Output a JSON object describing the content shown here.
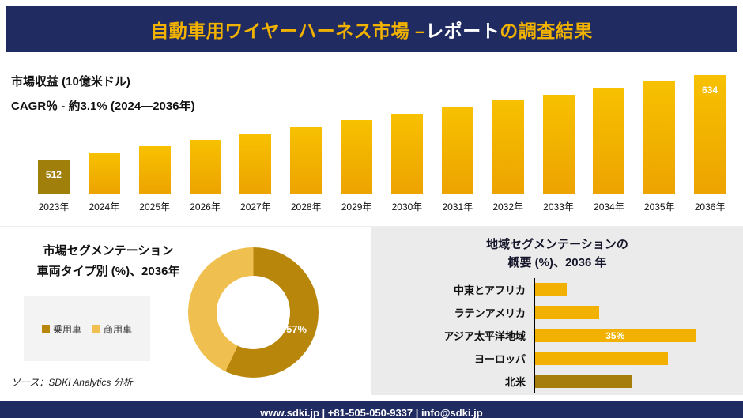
{
  "header": {
    "title_gold_1": "自動車用ワイヤーハーネス市場 –",
    "title_white": "レポート",
    "title_gold_2": "の調査結果"
  },
  "colors": {
    "navy": "#202B61",
    "gold": "#F2B200",
    "bar_gold": "#F1A900",
    "bar_dark_gold": "#A17F0B"
  },
  "chart_data": [
    {
      "id": "revenue",
      "type": "bar",
      "title": "市場収益 (10億米ドル)",
      "subtitle": "CAGR％ - 約3.1% (2024―2036年)",
      "categories": [
        "2023年",
        "2024年",
        "2025年",
        "2026年",
        "2027年",
        "2028年",
        "2029年",
        "2030年",
        "2031年",
        "2032年",
        "2033年",
        "2034年",
        "2035年",
        "2036年"
      ],
      "values": [
        512,
        521,
        531,
        540,
        550,
        559,
        569,
        578,
        587,
        597,
        606,
        616,
        625,
        634
      ],
      "value_labels": {
        "0": "512",
        "13": "634"
      },
      "ylim": [
        480,
        650
      ],
      "bar_color_top": "#F7C100",
      "bar_color_bottom": "#EDA300",
      "first_bar_color": "#A17F0B",
      "grid": false,
      "legend": "none"
    },
    {
      "id": "vehicle_type",
      "type": "pie",
      "subtype": "donut",
      "title_line1": "市場セグメンテーション",
      "title_line2": "車両タイプ別 (%)、2036年",
      "segments": [
        {
          "label": "乗用車",
          "value": 57,
          "color": "#B8860B"
        },
        {
          "label": "商用車",
          "value": 43,
          "color": "#EFC04F"
        }
      ],
      "callout_label": "57%",
      "legend_position": "left",
      "source": "ソース：SDKI Analytics 分析"
    },
    {
      "id": "region",
      "type": "bar",
      "subtype": "horizontal",
      "title_line1": "地域セグメンテーションの",
      "title_line2": "概要 (%)、2036 年",
      "categories": [
        "中東とアフリカ",
        "ラテンアメリカ",
        "アジア太平洋地域",
        "ヨーロッパ",
        "北米"
      ],
      "values": [
        7,
        14,
        35,
        29,
        21
      ],
      "bar_colors": [
        "#F2B100",
        "#F2B100",
        "#F2B100",
        "#F2B100",
        "#A57E0B"
      ],
      "value_labels": {
        "2": "35%"
      },
      "xlim": [
        0,
        42
      ],
      "grid": false,
      "legend": "none"
    }
  ],
  "footer": {
    "text": "www.sdki.jp | +81-505-050-9337 | info@sdki.jp"
  }
}
